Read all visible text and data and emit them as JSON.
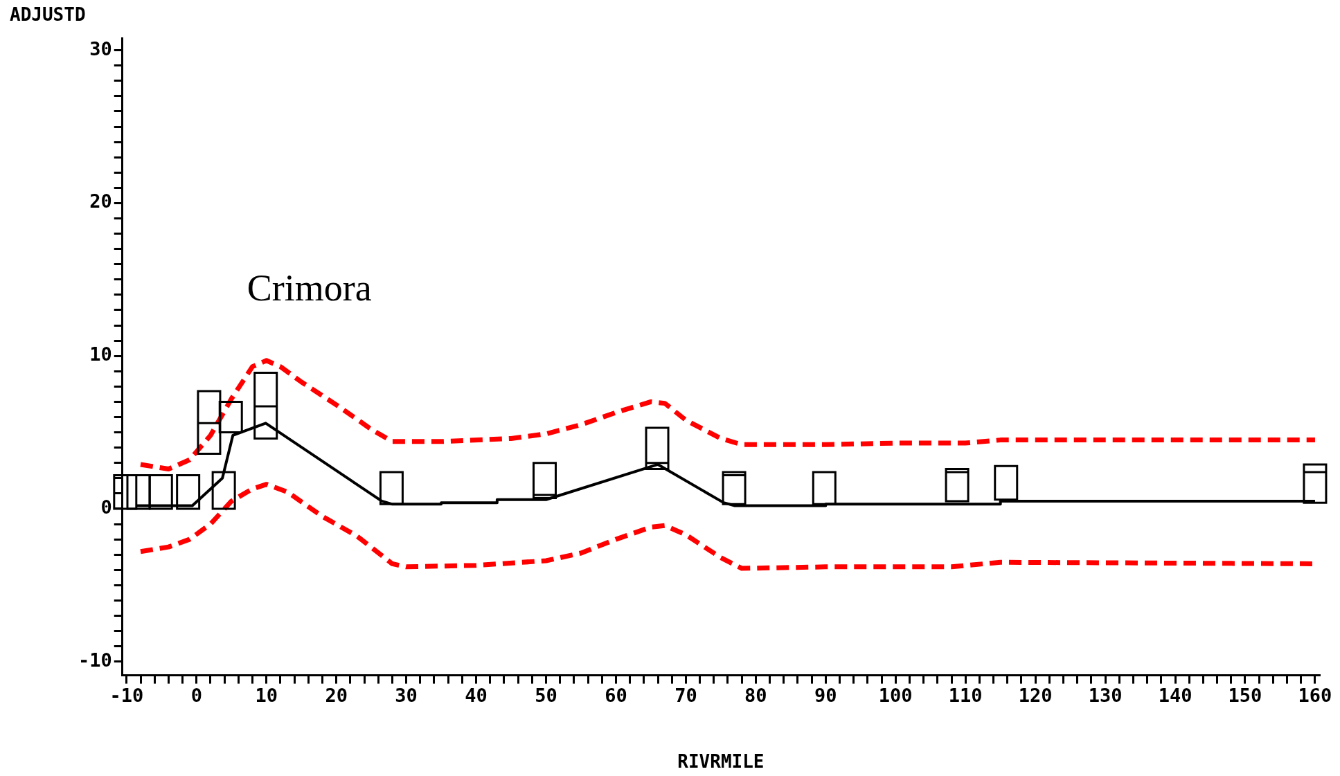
{
  "chart_data": {
    "type": "line",
    "xlabel": "RIVRMILE",
    "ylabel": "ADJUSTD",
    "xlim": [
      -10.6,
      160.6
    ],
    "ylim": [
      -10.9,
      30.8
    ],
    "xticks": [
      -10,
      {
        "value": -8,
        "label": null
      },
      {
        "value": -6,
        "label": null
      },
      {
        "value": -4,
        "label": null
      },
      {
        "value": -2,
        "label": null
      },
      0,
      {
        "value": 2,
        "label": null
      },
      {
        "value": 4,
        "label": null
      },
      {
        "value": 6,
        "label": null
      },
      {
        "value": 8,
        "label": null
      },
      10,
      {
        "value": 12,
        "label": null
      },
      {
        "value": 14,
        "label": null
      },
      {
        "value": 16,
        "label": null
      },
      {
        "value": 18,
        "label": null
      },
      20,
      {
        "value": 22,
        "label": null
      },
      {
        "value": 24,
        "label": null
      },
      {
        "value": 26,
        "label": null
      },
      {
        "value": 28,
        "label": null
      },
      30,
      {
        "value": 32,
        "label": null
      },
      {
        "value": 34,
        "label": null
      },
      {
        "value": 36,
        "label": null
      },
      {
        "value": 38,
        "label": null
      },
      40,
      {
        "value": 42,
        "label": null
      },
      {
        "value": 44,
        "label": null
      },
      {
        "value": 46,
        "label": null
      },
      {
        "value": 48,
        "label": null
      },
      50,
      {
        "value": 52,
        "label": null
      },
      {
        "value": 54,
        "label": null
      },
      {
        "value": 56,
        "label": null
      },
      {
        "value": 58,
        "label": null
      },
      60,
      {
        "value": 62,
        "label": null
      },
      {
        "value": 64,
        "label": null
      },
      {
        "value": 66,
        "label": null
      },
      {
        "value": 68,
        "label": null
      },
      70,
      {
        "value": 72,
        "label": null
      },
      {
        "value": 74,
        "label": null
      },
      {
        "value": 76,
        "label": null
      },
      {
        "value": 78,
        "label": null
      },
      80,
      {
        "value": 82,
        "label": null
      },
      {
        "value": 84,
        "label": null
      },
      {
        "value": 86,
        "label": null
      },
      {
        "value": 88,
        "label": null
      },
      90,
      {
        "value": 92,
        "label": null
      },
      {
        "value": 94,
        "label": null
      },
      {
        "value": 96,
        "label": null
      },
      {
        "value": 98,
        "label": null
      },
      100,
      {
        "value": 102,
        "label": null
      },
      {
        "value": 104,
        "label": null
      },
      {
        "value": 106,
        "label": null
      },
      {
        "value": 108,
        "label": null
      },
      110,
      {
        "value": 112,
        "label": null
      },
      {
        "value": 114,
        "label": null
      },
      {
        "value": 116,
        "label": null
      },
      {
        "value": 118,
        "label": null
      },
      120,
      {
        "value": 122,
        "label": null
      },
      {
        "value": 124,
        "label": null
      },
      {
        "value": 126,
        "label": null
      },
      {
        "value": 128,
        "label": null
      },
      130,
      {
        "value": 132,
        "label": null
      },
      {
        "value": 134,
        "label": null
      },
      {
        "value": 136,
        "label": null
      },
      {
        "value": 138,
        "label": null
      },
      140,
      {
        "value": 142,
        "label": null
      },
      {
        "value": 144,
        "label": null
      },
      {
        "value": 146,
        "label": null
      },
      {
        "value": 148,
        "label": null
      },
      150,
      {
        "value": 152,
        "label": null
      },
      {
        "value": 154,
        "label": null
      },
      {
        "value": 156,
        "label": null
      },
      {
        "value": 158,
        "label": null
      },
      160
    ],
    "yticks": [
      -10,
      {
        "value": -9,
        "label": null
      },
      {
        "value": -8,
        "label": null
      },
      {
        "value": -7,
        "label": null
      },
      {
        "value": -6,
        "label": null
      },
      {
        "value": -5,
        "label": null
      },
      {
        "value": -4,
        "label": null
      },
      {
        "value": -3,
        "label": null
      },
      {
        "value": -2,
        "label": null
      },
      {
        "value": -1,
        "label": null
      },
      0,
      {
        "value": 1,
        "label": null
      },
      {
        "value": 2,
        "label": null
      },
      {
        "value": 3,
        "label": null
      },
      {
        "value": 4,
        "label": null
      },
      {
        "value": 5,
        "label": null
      },
      {
        "value": 6,
        "label": null
      },
      {
        "value": 7,
        "label": null
      },
      {
        "value": 8,
        "label": null
      },
      {
        "value": 9,
        "label": null
      },
      10,
      {
        "value": 11,
        "label": null
      },
      {
        "value": 12,
        "label": null
      },
      {
        "value": 13,
        "label": null
      },
      {
        "value": 14,
        "label": null
      },
      {
        "value": 15,
        "label": null
      },
      {
        "value": 16,
        "label": null
      },
      {
        "value": 17,
        "label": null
      },
      {
        "value": 18,
        "label": null
      },
      {
        "value": 19,
        "label": null
      },
      20,
      {
        "value": 21,
        "label": null
      },
      {
        "value": 22,
        "label": null
      },
      {
        "value": 23,
        "label": null
      },
      {
        "value": 24,
        "label": null
      },
      {
        "value": 25,
        "label": null
      },
      {
        "value": 26,
        "label": null
      },
      {
        "value": 27,
        "label": null
      },
      {
        "value": 28,
        "label": null
      },
      {
        "value": 29,
        "label": null
      },
      30
    ],
    "grid": false,
    "legend": false,
    "annotations": [
      "Crimora"
    ],
    "series": [
      {
        "type": "box",
        "color": "#000000",
        "x": [
          -10.2,
          -8.3,
          -5.1,
          -1.2,
          1.8,
          3.9,
          4.9,
          9.9,
          27.9,
          49.8,
          65.9,
          76.9,
          89.8,
          108.8,
          115.8,
          160
        ],
        "boxes": [
          {
            "low": 0,
            "q1": 0,
            "median": 0,
            "q3": 2.2,
            "high": 2.2
          },
          {
            "low": 0,
            "q1": 0,
            "median": 0,
            "q3": 2.2,
            "high": 2.2
          },
          {
            "low": 0,
            "q1": 0,
            "median": 0,
            "q3": 2.2,
            "high": 2.2
          },
          {
            "low": 0,
            "q1": 0,
            "median": 0,
            "q3": 2.2,
            "high": 2.2
          },
          {
            "low": 3.6,
            "q1": 3.6,
            "median": 5.6,
            "q3": 7.7,
            "high": 7.7
          },
          {
            "low": 0,
            "q1": 0,
            "median": 0,
            "q3": 2.4,
            "high": 2.4
          },
          {
            "low": 5,
            "q1": 5,
            "median": 5,
            "q3": 7,
            "high": 7
          },
          {
            "low": 4.6,
            "q1": 4.6,
            "median": 6.7,
            "q3": 8.9,
            "high": 8.9
          },
          {
            "low": 0.3,
            "q1": 0.3,
            "median": 0.3,
            "q3": 2.4,
            "high": 2.4
          },
          {
            "low": 0.7,
            "q1": 0.7,
            "median": 0.9,
            "q3": 3,
            "high": 3
          },
          {
            "low": 2.6,
            "q1": 2.6,
            "median": 3,
            "q3": 5.3,
            "high": 5.3
          },
          {
            "low": 0.3,
            "q1": 0.3,
            "median": 2.2,
            "q3": 2.4,
            "high": 2.4
          },
          {
            "low": 0.3,
            "q1": 0.3,
            "median": 0.3,
            "q3": 2.4,
            "high": 2.4
          },
          {
            "low": 0.5,
            "q1": 0.5,
            "median": 2.4,
            "q3": 2.6,
            "high": 2.6
          },
          {
            "low": 0.6,
            "q1": 0.6,
            "median": 0.6,
            "q3": 2.8,
            "high": 2.8
          },
          {
            "low": 0.4,
            "q1": 0.4,
            "median": 2.4,
            "q3": 2.9,
            "high": 2.9
          }
        ]
      },
      {
        "type": "line",
        "color": "#000000",
        "line_style": "solid",
        "x": [
          -8.5,
          -0.6,
          3.7,
          5.2,
          9.9,
          26.5,
          28,
          35,
          35,
          43,
          43,
          50,
          66,
          75.4,
          77,
          90,
          90,
          115,
          115,
          160
        ],
        "values": [
          0.2,
          0.2,
          2,
          4.8,
          5.6,
          0.5,
          0.3,
          0.3,
          0.4,
          0.4,
          0.6,
          0.6,
          2.9,
          0.4,
          0.2,
          0.2,
          0.3,
          0.3,
          0.5,
          0.5
        ]
      },
      {
        "type": "line",
        "color": "#ff0000",
        "line_style": "dashed",
        "x": [
          -8,
          -4,
          -1,
          2,
          5,
          8,
          10,
          12,
          15,
          20,
          25,
          28,
          35,
          45,
          50,
          55,
          60,
          65,
          67,
          70,
          75,
          78,
          90,
          100,
          110,
          115,
          160
        ],
        "values": [
          2.9,
          2.6,
          3.2,
          4.8,
          7.2,
          9.3,
          9.7,
          9.3,
          8.3,
          6.8,
          5.2,
          4.4,
          4.4,
          4.6,
          4.9,
          5.5,
          6.3,
          7,
          6.9,
          5.8,
          4.6,
          4.2,
          4.2,
          4.3,
          4.3,
          4.5,
          4.5
        ]
      },
      {
        "type": "line",
        "color": "#ff0000",
        "line_style": "dashed",
        "x": [
          -8,
          -4,
          -1,
          2,
          5,
          8,
          10,
          13,
          18,
          23,
          28,
          30,
          40,
          50,
          55,
          60,
          65,
          67,
          70,
          75,
          78,
          90,
          108,
          115,
          160
        ],
        "values": [
          -2.8,
          -2.5,
          -2,
          -1,
          0.5,
          1.3,
          1.6,
          1.1,
          -0.5,
          -1.8,
          -3.6,
          -3.8,
          -3.7,
          -3.4,
          -2.9,
          -2,
          -1.2,
          -1.1,
          -1.7,
          -3.2,
          -3.9,
          -3.8,
          -3.8,
          -3.5,
          -3.6
        ]
      }
    ]
  }
}
